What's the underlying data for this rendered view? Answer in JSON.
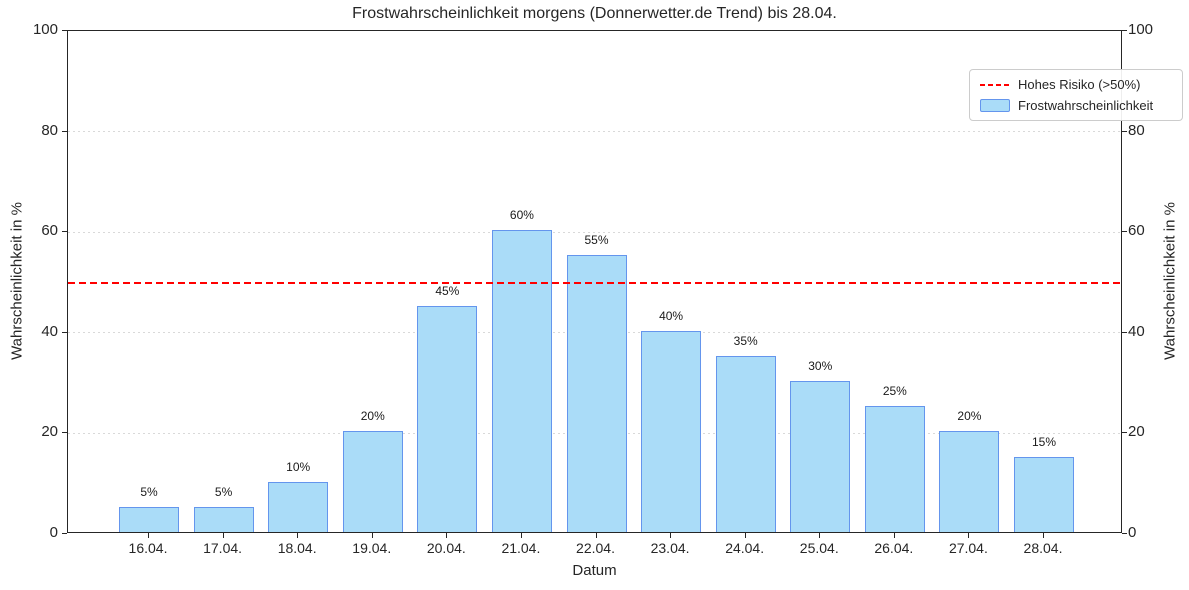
{
  "chart_data": {
    "type": "bar",
    "title": "Frostwahrscheinlichkeit morgens (Donnerwetter.de Trend) bis 28.04.",
    "xlabel": "Datum",
    "ylabel_left": "Wahrscheinlichkeit in %",
    "ylabel_right": "Wahrscheinlichkeit in %",
    "categories": [
      "16.04.",
      "17.04.",
      "18.04.",
      "19.04.",
      "20.04.",
      "21.04.",
      "22.04.",
      "23.04.",
      "24.04.",
      "25.04.",
      "26.04.",
      "27.04.",
      "28.04."
    ],
    "values": [
      5,
      5,
      10,
      20,
      45,
      60,
      55,
      40,
      35,
      30,
      25,
      20,
      15
    ],
    "bar_labels": [
      "5%",
      "5%",
      "10%",
      "20%",
      "45%",
      "60%",
      "55%",
      "40%",
      "35%",
      "30%",
      "25%",
      "20%",
      "15%"
    ],
    "ylim": [
      0,
      100
    ],
    "yticks": [
      0,
      20,
      40,
      60,
      80,
      100
    ],
    "grid": "horizontal dotted at yticks",
    "threshold_line": {
      "value": 50,
      "style": "dashed",
      "color": "#ff0000",
      "label": "Hohes Risiko (>50%)"
    },
    "legend": {
      "position": "upper right",
      "entries": [
        {
          "label": "Hohes Risiko (>50%)",
          "marker": "red-dashed-line"
        },
        {
          "label": "Frostwahrscheinlichkeit",
          "marker": "lightblue-patch"
        }
      ]
    },
    "colors": {
      "bar_fill": "#aadcf8",
      "bar_edge": "#6495ed",
      "grid": "#d9d9d9",
      "threshold": "#ff0000",
      "text": "#262626"
    }
  }
}
